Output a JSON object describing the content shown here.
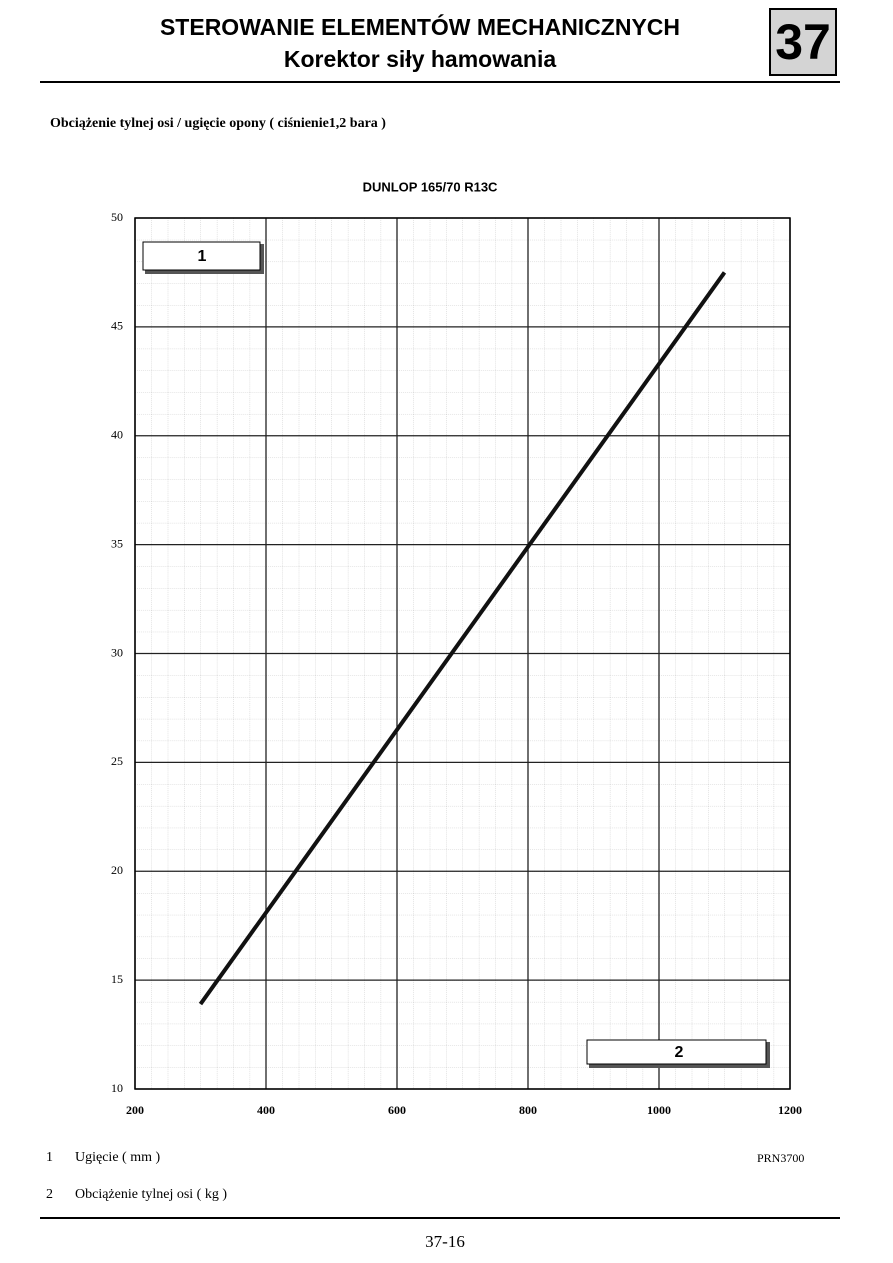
{
  "header": {
    "title": "STEROWANIE ELEMENTÓW MECHANICZNYCH",
    "subtitle": "Korektor siły hamowania",
    "section": "37"
  },
  "caption": "Obciążenie tylnej osi / ugięcie opony ( ciśnienie1,2 bara )",
  "chart_data": {
    "type": "line",
    "title": "DUNLOP 165/70 R13C",
    "ylabel": "1",
    "xlabel": "2",
    "series": [
      {
        "color": "#111111",
        "x": [
          300,
          1100
        ],
        "values": [
          13.9,
          47.5
        ]
      }
    ],
    "xlim": [
      200,
      1200
    ],
    "xticks": [
      200,
      400,
      600,
      800,
      1000,
      1200
    ],
    "ylim": [
      10,
      50
    ],
    "yticks": [
      10,
      15,
      20,
      25,
      30,
      35,
      40,
      45,
      50
    ],
    "grid": true
  },
  "notes": [
    {
      "key": "1",
      "text": "Ugięcie ( mm )"
    },
    {
      "key": "2",
      "text": "Obciążenie tylnej osi  ( kg )"
    }
  ],
  "reference": "PRN3700",
  "page_number": "37-16"
}
